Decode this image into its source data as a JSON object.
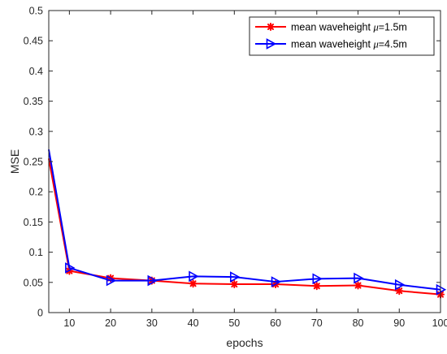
{
  "chart_data": {
    "type": "line",
    "title": "",
    "xlabel": "epochs",
    "ylabel": "MSE",
    "xlim": [
      5,
      100
    ],
    "ylim": [
      0,
      0.5
    ],
    "xticks": [
      10,
      20,
      30,
      40,
      50,
      60,
      70,
      80,
      90,
      100
    ],
    "xtick_labels": [
      "10",
      "20",
      "30",
      "40",
      "50",
      "60",
      "70",
      "80",
      "90",
      "100"
    ],
    "yticks": [
      0,
      0.05,
      0.1,
      0.15,
      0.2,
      0.25,
      0.3,
      0.35,
      0.4,
      0.45,
      0.5
    ],
    "ytick_labels": [
      "0",
      "0.05",
      "0.1",
      "0.15",
      "0.2",
      "0.25",
      "0.3",
      "0.35",
      "0.4",
      "0.45",
      "0.5"
    ],
    "grid": false,
    "legend_position": "top-right",
    "series": [
      {
        "name_prefix": "mean waveheight  ",
        "name_mu": "μ",
        "name_suffix": "=1.5m",
        "color": "#ff0000",
        "marker": "asterisk",
        "x": [
          5,
          10,
          20,
          30,
          40,
          50,
          60,
          70,
          80,
          90,
          100
        ],
        "y": [
          0.255,
          0.069,
          0.057,
          0.053,
          0.048,
          0.047,
          0.047,
          0.044,
          0.045,
          0.036,
          0.03
        ]
      },
      {
        "name_prefix": "mean waveheight  ",
        "name_mu": "μ",
        "name_suffix": "=4.5m",
        "color": "#0000ff",
        "marker": "triangle-right",
        "x": [
          5,
          10,
          20,
          30,
          40,
          50,
          60,
          70,
          80,
          90,
          100
        ],
        "y": [
          0.27,
          0.074,
          0.053,
          0.053,
          0.06,
          0.059,
          0.051,
          0.056,
          0.057,
          0.046,
          0.038
        ]
      }
    ]
  }
}
